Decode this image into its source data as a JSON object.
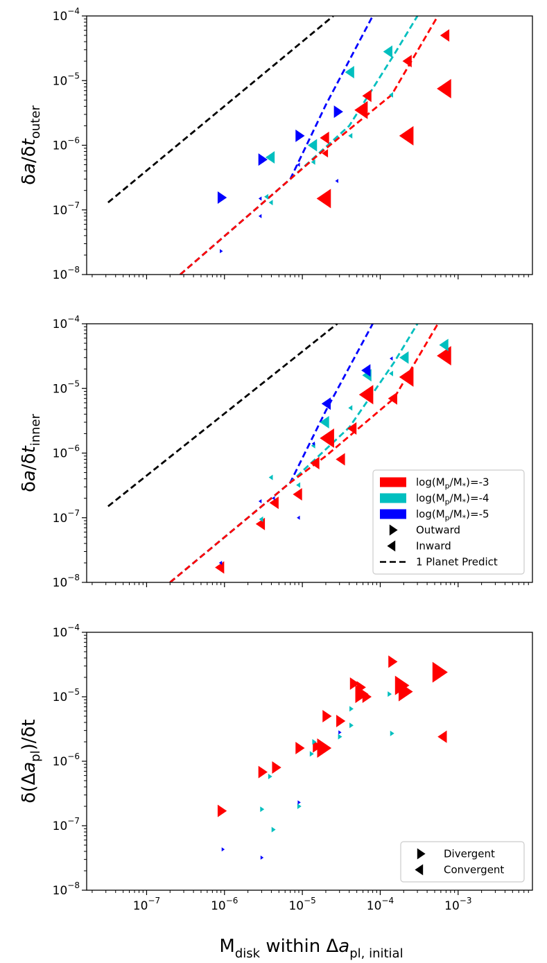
{
  "colors": {
    "p3": "#ff0000",
    "p4": "#00bfbf",
    "p5": "#0000ff",
    "pred": "#000000"
  },
  "xaxis": {
    "label_main": "M",
    "label_sub": "disk",
    "label_mid": " within Δ",
    "label_a": "a",
    "label_sub2": "pl, initial",
    "ticks": [
      {
        "value": 1e-07,
        "base": "10",
        "exp": "−7"
      },
      {
        "value": 1e-06,
        "base": "10",
        "exp": "−6"
      },
      {
        "value": 1e-05,
        "base": "10",
        "exp": "−5"
      },
      {
        "value": 0.0001,
        "base": "10",
        "exp": "−4"
      },
      {
        "value": 0.001,
        "base": "10",
        "exp": "−3"
      }
    ],
    "xlim": [
      1.7e-08,
      0.009
    ]
  },
  "chart_data": [
    {
      "type": "scatter",
      "id": "outer",
      "ylabel_main": "δa/δt",
      "ylabel_sub": "outer",
      "ylim": [
        1e-08,
        0.0001
      ],
      "yticks": [
        {
          "value": 1e-08,
          "base": "10",
          "exp": "−8"
        },
        {
          "value": 1e-07,
          "base": "10",
          "exp": "−7"
        },
        {
          "value": 1e-06,
          "base": "10",
          "exp": "−6"
        },
        {
          "value": 1e-05,
          "base": "10",
          "exp": "−5"
        },
        {
          "value": 0.0001,
          "base": "10",
          "exp": "−4"
        }
      ],
      "lines": [
        {
          "series": "pred",
          "dash": true,
          "points": [
            [
              3.2e-08,
              1.3e-07
            ],
            [
              2.5e-05,
              0.0001
            ]
          ]
        },
        {
          "series": "p5",
          "dash": true,
          "points": [
            [
              2.7e-07,
              1e-08
            ],
            [
              7e-06,
              3e-07
            ],
            [
              2e-05,
              4.2e-06
            ],
            [
              8e-05,
              0.0001
            ]
          ]
        },
        {
          "series": "p4",
          "dash": true,
          "points": [
            [
              2.7e-07,
              1e-08
            ],
            [
              7e-06,
              3e-07
            ],
            [
              4e-05,
              2e-06
            ],
            [
              0.00015,
              2.5e-05
            ],
            [
              0.0003,
              0.0001
            ]
          ]
        },
        {
          "series": "p3",
          "dash": true,
          "points": [
            [
              2.7e-07,
              1e-08
            ],
            [
              7e-06,
              3e-07
            ],
            [
              1.8e-05,
              8e-07
            ],
            [
              0.00014,
              6e-06
            ],
            [
              0.00055,
              0.0001
            ]
          ]
        }
      ],
      "points": [
        {
          "series": "p3",
          "dir": "in",
          "x": 0.0007,
          "y": 5e-05,
          "s": 9
        },
        {
          "series": "p3",
          "dir": "in",
          "x": 0.0007,
          "y": 7.5e-06,
          "s": 14
        },
        {
          "series": "p3",
          "dir": "in",
          "x": 0.00023,
          "y": 1.4e-06,
          "s": 14
        },
        {
          "series": "p3",
          "dir": "in",
          "x": 0.00023,
          "y": 2e-05,
          "s": 9
        },
        {
          "series": "p3",
          "dir": "in",
          "x": 7e-05,
          "y": 5.8e-06,
          "s": 9
        },
        {
          "series": "p3",
          "dir": "in",
          "x": 6e-05,
          "y": 3.5e-06,
          "s": 13
        },
        {
          "series": "p3",
          "dir": "in",
          "x": 2e-05,
          "y": 1.5e-07,
          "s": 14
        },
        {
          "series": "p3",
          "dir": "in",
          "x": 2e-05,
          "y": 1.3e-06,
          "s": 9
        },
        {
          "series": "p3",
          "dir": "in",
          "x": 2e-05,
          "y": 7.5e-07,
          "s": 6
        },
        {
          "series": "p4",
          "dir": "in",
          "x": 0.00013,
          "y": 2.8e-05,
          "s": 9
        },
        {
          "series": "p4",
          "dir": "in",
          "x": 0.00014,
          "y": 6e-06,
          "s": 4
        },
        {
          "series": "p4",
          "dir": "in",
          "x": 4.2e-05,
          "y": 1.35e-05,
          "s": 9
        },
        {
          "series": "p4",
          "dir": "in",
          "x": 4.2e-05,
          "y": 1.4e-06,
          "s": 4
        },
        {
          "series": "p4",
          "dir": "in",
          "x": 1.4e-05,
          "y": 1e-06,
          "s": 9
        },
        {
          "series": "p4",
          "dir": "in",
          "x": 1.4e-05,
          "y": 5.5e-07,
          "s": 4
        },
        {
          "series": "p4",
          "dir": "in",
          "x": 4e-06,
          "y": 6.5e-07,
          "s": 9
        },
        {
          "series": "p4",
          "dir": "in",
          "x": 4e-06,
          "y": 1.3e-07,
          "s": 4
        },
        {
          "series": "p4",
          "dir": "in",
          "x": 3.5e-06,
          "y": 1.6e-07,
          "s": 4
        },
        {
          "series": "p5",
          "dir": "out",
          "x": 2.8e-05,
          "y": 3.3e-06,
          "s": 9
        },
        {
          "series": "p5",
          "dir": "in",
          "x": 2.8e-05,
          "y": 2.8e-07,
          "s": 3
        },
        {
          "series": "p5",
          "dir": "out",
          "x": 9e-06,
          "y": 1.4e-06,
          "s": 9
        },
        {
          "series": "p5",
          "dir": "in",
          "x": 9e-06,
          "y": 5e-07,
          "s": 3
        },
        {
          "series": "p5",
          "dir": "out",
          "x": 3e-06,
          "y": 6e-07,
          "s": 9
        },
        {
          "series": "p5",
          "dir": "in",
          "x": 2.9e-06,
          "y": 1.5e-07,
          "s": 3
        },
        {
          "series": "p5",
          "dir": "in",
          "x": 2.9e-06,
          "y": 8e-08,
          "s": 3
        },
        {
          "series": "p5",
          "dir": "out",
          "x": 9e-07,
          "y": 1.55e-07,
          "s": 9
        },
        {
          "series": "p5",
          "dir": "out",
          "x": 9e-07,
          "y": 2.3e-08,
          "s": 3
        }
      ]
    },
    {
      "type": "scatter",
      "id": "inner",
      "ylabel_main": "δa/δt",
      "ylabel_sub": "inner",
      "ylim": [
        1e-08,
        0.0001
      ],
      "yticks": [
        {
          "value": 1e-08,
          "base": "10",
          "exp": "−8"
        },
        {
          "value": 1e-07,
          "base": "10",
          "exp": "−7"
        },
        {
          "value": 1e-06,
          "base": "10",
          "exp": "−6"
        },
        {
          "value": 1e-05,
          "base": "10",
          "exp": "−5"
        },
        {
          "value": 0.0001,
          "base": "10",
          "exp": "−4"
        }
      ],
      "legend": {
        "position": "lower-right",
        "entries": [
          {
            "kind": "patch",
            "series": "p3",
            "label": "log(M",
            "sub1": "p",
            "mid": "/M",
            "sub2": "*",
            "tail": ")=-3"
          },
          {
            "kind": "patch",
            "series": "p4",
            "label": "log(M",
            "sub1": "p",
            "mid": "/M",
            "sub2": "*",
            "tail": ")=-4"
          },
          {
            "kind": "patch",
            "series": "p5",
            "label": "log(M",
            "sub1": "p",
            "mid": "/M",
            "sub2": "*",
            "tail": ")=-5"
          },
          {
            "kind": "marker",
            "dir": "out",
            "label": "Outward"
          },
          {
            "kind": "marker",
            "dir": "in",
            "label": "Inward"
          },
          {
            "kind": "line",
            "label": "1 Planet Predict"
          }
        ]
      },
      "lines": [
        {
          "series": "pred",
          "dash": true,
          "points": [
            [
              3.2e-08,
              1.5e-07
            ],
            [
              2.8e-05,
              0.0001
            ]
          ]
        },
        {
          "series": "p5",
          "dash": true,
          "points": [
            [
              2e-07,
              1e-08
            ],
            [
              7e-06,
              3.5e-07
            ],
            [
              2e-05,
              4.5e-06
            ],
            [
              8e-05,
              0.0001
            ]
          ]
        },
        {
          "series": "p4",
          "dash": true,
          "points": [
            [
              2e-07,
              1e-08
            ],
            [
              7e-06,
              3.5e-07
            ],
            [
              4e-05,
              2.5e-06
            ],
            [
              0.00015,
              2.5e-05
            ],
            [
              0.0003,
              0.0001
            ]
          ]
        },
        {
          "series": "p3",
          "dash": true,
          "points": [
            [
              2e-07,
              1e-08
            ],
            [
              7e-06,
              3.5e-07
            ],
            [
              2e-05,
              9e-07
            ],
            [
              0.00015,
              7e-06
            ],
            [
              0.00055,
              0.0001
            ]
          ]
        }
      ],
      "points": [
        {
          "series": "p3",
          "dir": "in",
          "x": 0.0007,
          "y": 3.2e-05,
          "s": 14
        },
        {
          "series": "p3",
          "dir": "in",
          "x": 0.00023,
          "y": 1.5e-05,
          "s": 14
        },
        {
          "series": "p3",
          "dir": "in",
          "x": 0.00015,
          "y": 7e-06,
          "s": 9
        },
        {
          "series": "p3",
          "dir": "in",
          "x": 7e-05,
          "y": 8e-06,
          "s": 14
        },
        {
          "series": "p3",
          "dir": "in",
          "x": 4.5e-05,
          "y": 2.4e-06,
          "s": 9
        },
        {
          "series": "p3",
          "dir": "in",
          "x": 3.2e-05,
          "y": 8e-07,
          "s": 9
        },
        {
          "series": "p3",
          "dir": "in",
          "x": 2.2e-05,
          "y": 1.7e-06,
          "s": 14
        },
        {
          "series": "p3",
          "dir": "in",
          "x": 1.5e-05,
          "y": 7e-07,
          "s": 9
        },
        {
          "series": "p3",
          "dir": "in",
          "x": 9e-06,
          "y": 2.3e-07,
          "s": 9
        },
        {
          "series": "p3",
          "dir": "in",
          "x": 4.5e-06,
          "y": 1.7e-07,
          "s": 9
        },
        {
          "series": "p3",
          "dir": "in",
          "x": 3e-06,
          "y": 8e-08,
          "s": 9
        },
        {
          "series": "p3",
          "dir": "in",
          "x": 9e-07,
          "y": 1.7e-08,
          "s": 9
        },
        {
          "series": "p4",
          "dir": "in",
          "x": 0.00068,
          "y": 4.7e-05,
          "s": 9
        },
        {
          "series": "p4",
          "dir": "in",
          "x": 0.00021,
          "y": 3e-05,
          "s": 9
        },
        {
          "series": "p4",
          "dir": "in",
          "x": 0.00014,
          "y": 1.7e-05,
          "s": 4
        },
        {
          "series": "p4",
          "dir": "in",
          "x": 7e-05,
          "y": 1.6e-05,
          "s": 9
        },
        {
          "series": "p4",
          "dir": "in",
          "x": 4.2e-05,
          "y": 5e-06,
          "s": 4
        },
        {
          "series": "p4",
          "dir": "in",
          "x": 2e-05,
          "y": 3e-06,
          "s": 9
        },
        {
          "series": "p4",
          "dir": "in",
          "x": 1.4e-05,
          "y": 1.3e-06,
          "s": 4
        },
        {
          "series": "p4",
          "dir": "in",
          "x": 9e-06,
          "y": 3.2e-07,
          "s": 4
        },
        {
          "series": "p4",
          "dir": "in",
          "x": 4e-06,
          "y": 4.2e-07,
          "s": 4
        },
        {
          "series": "p4",
          "dir": "in",
          "x": 3e-06,
          "y": 9.5e-08,
          "s": 4
        },
        {
          "series": "p5",
          "dir": "in",
          "x": 0.00014,
          "y": 2.9e-05,
          "s": 3
        },
        {
          "series": "p5",
          "dir": "in",
          "x": 6.8e-05,
          "y": 1.9e-05,
          "s": 9
        },
        {
          "series": "p5",
          "dir": "in",
          "x": 2.1e-05,
          "y": 5.8e-06,
          "s": 9
        },
        {
          "series": "p5",
          "dir": "in",
          "x": 1.4e-05,
          "y": 1.4e-06,
          "s": 3
        },
        {
          "series": "p5",
          "dir": "in",
          "x": 9e-06,
          "y": 1e-07,
          "s": 3
        },
        {
          "series": "p5",
          "dir": "in",
          "x": 4.3e-06,
          "y": 2e-07,
          "s": 3
        },
        {
          "series": "p5",
          "dir": "in",
          "x": 2.9e-06,
          "y": 1.8e-07,
          "s": 3
        },
        {
          "series": "p5",
          "dir": "in",
          "x": 9e-07,
          "y": 2e-08,
          "s": 3
        }
      ]
    },
    {
      "type": "scatter",
      "id": "gap",
      "ylabel_main": "δ(Δa",
      "ylabel_sub": "pl",
      "ylabel_tail": ")/δt",
      "ylim": [
        1e-08,
        0.0001
      ],
      "yticks": [
        {
          "value": 1e-08,
          "base": "10",
          "exp": "−8"
        },
        {
          "value": 1e-07,
          "base": "10",
          "exp": "−7"
        },
        {
          "value": 1e-06,
          "base": "10",
          "exp": "−6"
        },
        {
          "value": 1e-05,
          "base": "10",
          "exp": "−5"
        },
        {
          "value": 0.0001,
          "base": "10",
          "exp": "−4"
        }
      ],
      "legend": {
        "position": "lower-right",
        "entries": [
          {
            "kind": "marker",
            "dir": "out",
            "label": "Divergent"
          },
          {
            "kind": "marker",
            "dir": "in",
            "label": "Convergent"
          }
        ]
      },
      "lines": [],
      "points": [
        {
          "series": "p3",
          "dir": "out",
          "x": 0.00055,
          "y": 2.4e-05,
          "s": 15
        },
        {
          "series": "p3",
          "dir": "in",
          "x": 0.00065,
          "y": 2.4e-06,
          "s": 9
        },
        {
          "series": "p3",
          "dir": "out",
          "x": 0.00014,
          "y": 3.5e-05,
          "s": 9
        },
        {
          "series": "p3",
          "dir": "out",
          "x": 0.00018,
          "y": 1.5e-05,
          "s": 14
        },
        {
          "series": "p3",
          "dir": "out",
          "x": 0.0002,
          "y": 1.2e-05,
          "s": 14
        },
        {
          "series": "p3",
          "dir": "out",
          "x": 4.5e-05,
          "y": 1.6e-05,
          "s": 9
        },
        {
          "series": "p3",
          "dir": "out",
          "x": 5.5e-05,
          "y": 1.4e-05,
          "s": 9
        },
        {
          "series": "p3",
          "dir": "out",
          "x": 5.5e-05,
          "y": 1.1e-05,
          "s": 13
        },
        {
          "series": "p3",
          "dir": "out",
          "x": 6.5e-05,
          "y": 1e-05,
          "s": 9
        },
        {
          "series": "p3",
          "dir": "out",
          "x": 2e-05,
          "y": 5e-06,
          "s": 9
        },
        {
          "series": "p3",
          "dir": "out",
          "x": 3e-05,
          "y": 4.2e-06,
          "s": 9
        },
        {
          "series": "p3",
          "dir": "out",
          "x": 9e-06,
          "y": 1.6e-06,
          "s": 9
        },
        {
          "series": "p3",
          "dir": "out",
          "x": 1.5e-05,
          "y": 1.7e-06,
          "s": 9
        },
        {
          "series": "p3",
          "dir": "out",
          "x": 1.8e-05,
          "y": 1.6e-06,
          "s": 14
        },
        {
          "series": "p3",
          "dir": "out",
          "x": 3e-06,
          "y": 6.8e-07,
          "s": 9
        },
        {
          "series": "p3",
          "dir": "out",
          "x": 4.5e-06,
          "y": 8e-07,
          "s": 9
        },
        {
          "series": "p3",
          "dir": "out",
          "x": 9e-07,
          "y": 1.7e-07,
          "s": 9
        },
        {
          "series": "p4",
          "dir": "out",
          "x": 0.00013,
          "y": 1.1e-05,
          "s": 4
        },
        {
          "series": "p4",
          "dir": "out",
          "x": 0.00014,
          "y": 2.7e-06,
          "s": 4
        },
        {
          "series": "p4",
          "dir": "out",
          "x": 4.2e-05,
          "y": 6.5e-06,
          "s": 4
        },
        {
          "series": "p4",
          "dir": "out",
          "x": 4.2e-05,
          "y": 3.6e-06,
          "s": 4
        },
        {
          "series": "p4",
          "dir": "out",
          "x": 3e-05,
          "y": 2.4e-06,
          "s": 4
        },
        {
          "series": "p4",
          "dir": "out",
          "x": 1.4e-05,
          "y": 2e-06,
          "s": 4
        },
        {
          "series": "p4",
          "dir": "out",
          "x": 1.3e-05,
          "y": 1.3e-06,
          "s": 4
        },
        {
          "series": "p4",
          "dir": "out",
          "x": 3.8e-06,
          "y": 5.8e-07,
          "s": 4
        },
        {
          "series": "p4",
          "dir": "out",
          "x": 9e-06,
          "y": 2e-07,
          "s": 4
        },
        {
          "series": "p4",
          "dir": "out",
          "x": 3e-06,
          "y": 1.8e-07,
          "s": 4
        },
        {
          "series": "p4",
          "dir": "out",
          "x": 4.2e-06,
          "y": 8.7e-08,
          "s": 4
        },
        {
          "series": "p5",
          "dir": "out",
          "x": 3e-05,
          "y": 2.8e-06,
          "s": 3
        },
        {
          "series": "p5",
          "dir": "out",
          "x": 9e-06,
          "y": 2.3e-07,
          "s": 3
        },
        {
          "series": "p5",
          "dir": "out",
          "x": 9.5e-07,
          "y": 4.3e-08,
          "s": 3
        },
        {
          "series": "p5",
          "dir": "out",
          "x": 3e-06,
          "y": 3.2e-08,
          "s": 3
        }
      ]
    }
  ]
}
